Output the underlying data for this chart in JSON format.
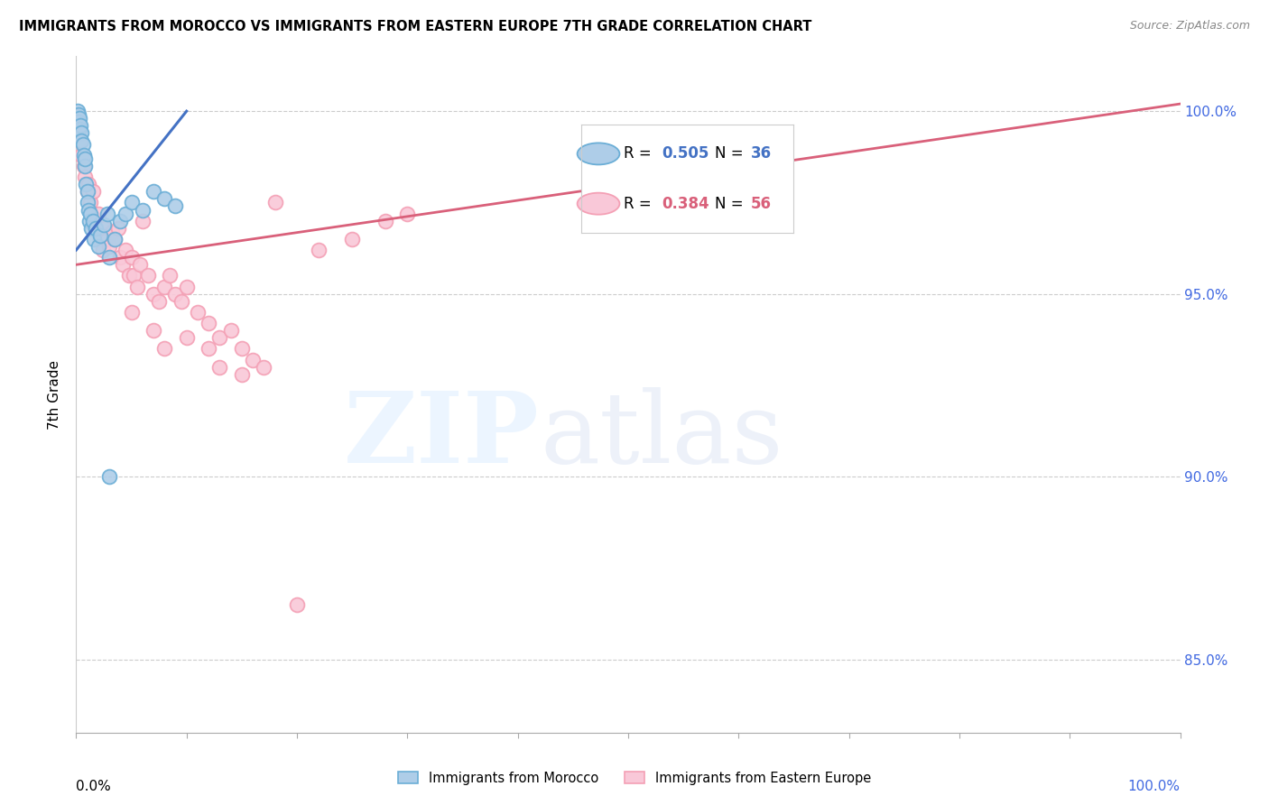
{
  "title": "IMMIGRANTS FROM MOROCCO VS IMMIGRANTS FROM EASTERN EUROPE 7TH GRADE CORRELATION CHART",
  "source": "Source: ZipAtlas.com",
  "ylabel": "7th Grade",
  "yticks": [
    85.0,
    90.0,
    95.0,
    100.0
  ],
  "xlim": [
    0.0,
    100.0
  ],
  "ylim": [
    83.0,
    101.5
  ],
  "morocco_color": "#6baed6",
  "morocco_fill": "#aecde8",
  "eastern_color": "#f4a0b5",
  "eastern_fill": "#f9c8d8",
  "blue_line_color": "#4472C4",
  "pink_line_color": "#d9607a",
  "morocco_R": "0.505",
  "morocco_N": "36",
  "eastern_R": "0.384",
  "eastern_N": "56",
  "morocco_x": [
    0.1,
    0.2,
    0.2,
    0.3,
    0.3,
    0.4,
    0.5,
    0.5,
    0.6,
    0.7,
    0.8,
    0.8,
    0.9,
    1.0,
    1.0,
    1.1,
    1.2,
    1.3,
    1.4,
    1.5,
    1.6,
    1.8,
    2.0,
    2.2,
    2.5,
    2.8,
    3.0,
    3.5,
    4.0,
    4.5,
    5.0,
    6.0,
    7.0,
    8.0,
    9.0,
    3.0
  ],
  "morocco_y": [
    100.0,
    99.9,
    99.7,
    99.8,
    99.5,
    99.6,
    99.4,
    99.2,
    99.1,
    98.8,
    98.5,
    98.7,
    98.0,
    97.8,
    97.5,
    97.3,
    97.0,
    97.2,
    96.8,
    97.0,
    96.5,
    96.8,
    96.3,
    96.6,
    96.9,
    97.2,
    96.0,
    96.5,
    97.0,
    97.2,
    97.5,
    97.3,
    97.8,
    97.6,
    97.4,
    90.0
  ],
  "eastern_x": [
    0.3,
    0.5,
    0.7,
    0.8,
    1.0,
    1.1,
    1.3,
    1.5,
    1.6,
    1.8,
    2.0,
    2.2,
    2.4,
    2.6,
    2.8,
    3.0,
    3.2,
    3.5,
    3.8,
    4.0,
    4.2,
    4.5,
    4.8,
    5.0,
    5.2,
    5.5,
    5.8,
    6.0,
    6.5,
    7.0,
    7.5,
    8.0,
    8.5,
    9.0,
    9.5,
    10.0,
    11.0,
    12.0,
    13.0,
    14.0,
    15.0,
    16.0,
    18.0,
    20.0,
    22.0,
    25.0,
    28.0,
    30.0,
    5.0,
    7.0,
    8.0,
    10.0,
    12.0,
    13.0,
    15.0,
    17.0
  ],
  "eastern_y": [
    99.2,
    98.8,
    98.5,
    98.2,
    97.8,
    98.0,
    97.5,
    97.8,
    97.0,
    96.8,
    97.2,
    96.5,
    96.2,
    96.8,
    96.5,
    96.3,
    96.7,
    96.5,
    96.8,
    96.0,
    95.8,
    96.2,
    95.5,
    96.0,
    95.5,
    95.2,
    95.8,
    97.0,
    95.5,
    95.0,
    94.8,
    95.2,
    95.5,
    95.0,
    94.8,
    95.2,
    94.5,
    94.2,
    93.8,
    94.0,
    93.5,
    93.2,
    97.5,
    86.5,
    96.2,
    96.5,
    97.0,
    97.2,
    94.5,
    94.0,
    93.5,
    93.8,
    93.5,
    93.0,
    92.8,
    93.0
  ],
  "morocco_trendline_x": [
    0.0,
    10.0
  ],
  "morocco_trendline_y": [
    96.2,
    100.0
  ],
  "eastern_trendline_x": [
    0.0,
    100.0
  ],
  "eastern_trendline_y": [
    95.8,
    100.2
  ]
}
